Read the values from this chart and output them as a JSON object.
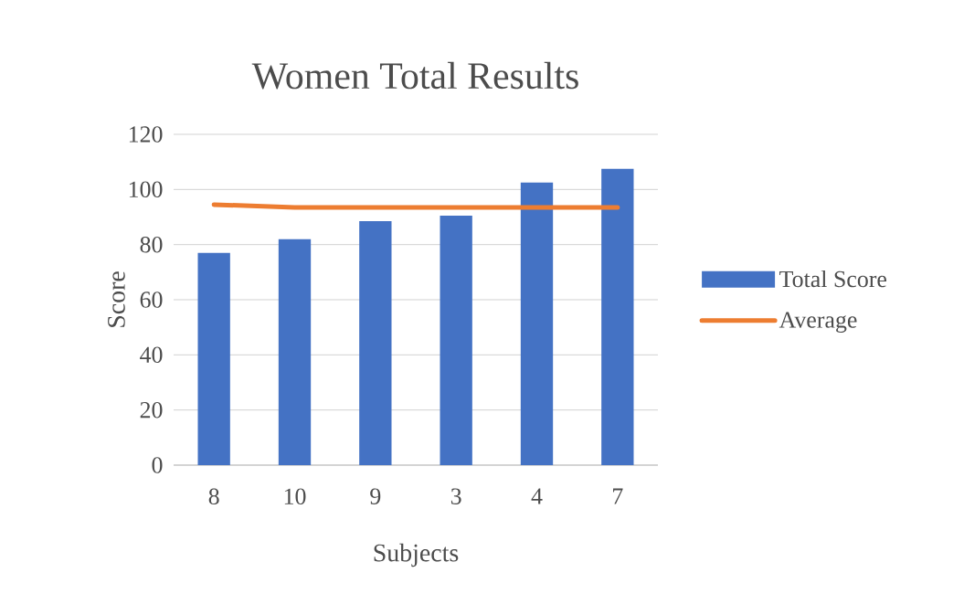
{
  "chart_data": {
    "type": "bar",
    "title": "Women Total Results",
    "xlabel": "Subjects",
    "ylabel": "Score",
    "categories": [
      "8",
      "10",
      "9",
      "3",
      "4",
      "7"
    ],
    "series": [
      {
        "name": "Total Score",
        "color": "#4472c4",
        "values": [
          77,
          82,
          88.5,
          90.5,
          102.5,
          107.5
        ]
      },
      {
        "name": "Average",
        "type": "line",
        "color": "#ed7d31",
        "values": [
          94.5,
          93.5,
          93.5,
          93.5,
          93.5,
          93.5
        ]
      }
    ],
    "ylim": [
      0,
      120
    ],
    "yticks": [
      0,
      20,
      40,
      60,
      80,
      100,
      120
    ],
    "grid": "y",
    "legend": "right"
  }
}
